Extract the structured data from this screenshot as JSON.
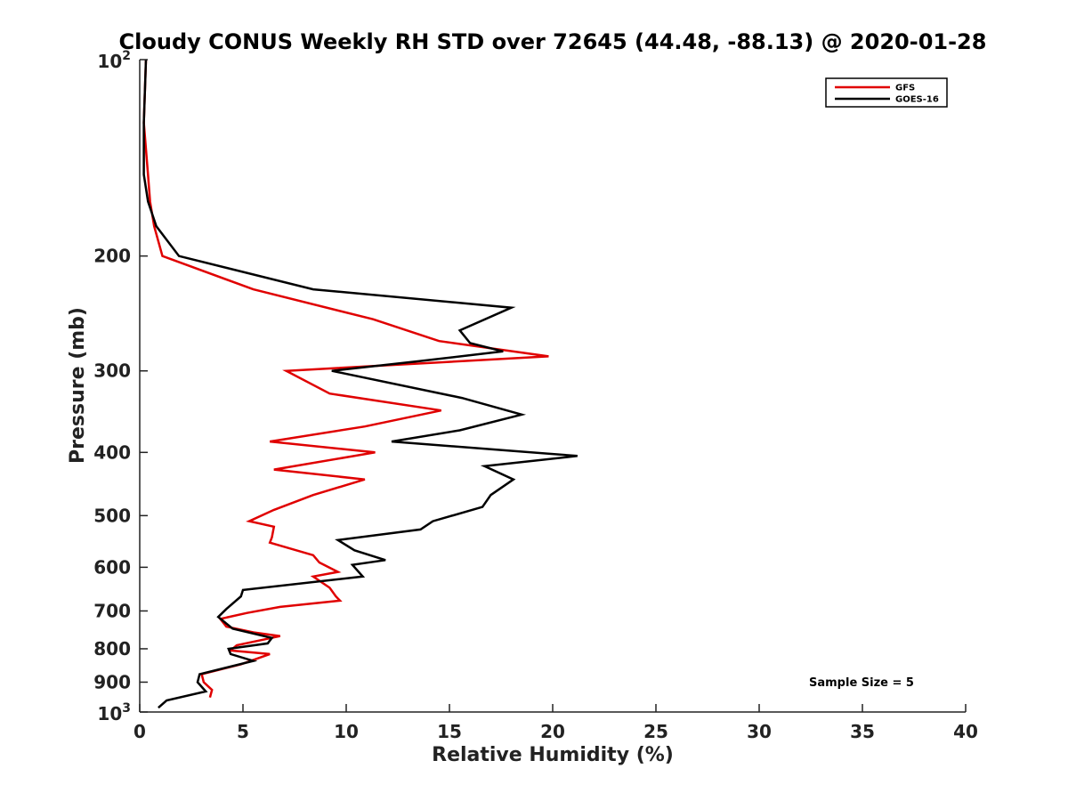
{
  "chart_data": {
    "type": "line",
    "title": "Cloudy CONUS Weekly RH STD over 72645 (44.48, -88.13) @ 2020-01-28",
    "xlabel": "Relative Humidity (%)",
    "ylabel": "Pressure (mb)",
    "xlim": [
      0,
      40
    ],
    "ylim": [
      100,
      1000
    ],
    "y_scale": "log",
    "y_reversed": true,
    "x_ticks": [
      "0",
      "5",
      "10",
      "15",
      "20",
      "25",
      "30",
      "35",
      "40"
    ],
    "y_ticks": [
      {
        "value": 100,
        "base": "10",
        "exp": "2"
      },
      {
        "value": 200,
        "label": "200"
      },
      {
        "value": 300,
        "label": "300"
      },
      {
        "value": 400,
        "label": "400"
      },
      {
        "value": 500,
        "label": "500"
      },
      {
        "value": 600,
        "label": "600"
      },
      {
        "value": 700,
        "label": "700"
      },
      {
        "value": 800,
        "label": "800"
      },
      {
        "value": 900,
        "label": "900"
      },
      {
        "value": 1000,
        "base": "10",
        "exp": "3"
      }
    ],
    "legend_position": "top-right",
    "grid": false,
    "annotation": "Sample Size = 5",
    "series": [
      {
        "name": "GFS",
        "color": "#e00000",
        "points": [
          [
            0.3,
            100
          ],
          [
            0.2,
            125
          ],
          [
            0.4,
            150
          ],
          [
            0.5,
            165
          ],
          [
            0.7,
            180
          ],
          [
            1.1,
            200
          ],
          [
            5.5,
            225
          ],
          [
            11.3,
            250
          ],
          [
            14.5,
            270
          ],
          [
            19.8,
            285
          ],
          [
            7.1,
            300
          ],
          [
            9.2,
            325
          ],
          [
            14.6,
            345
          ],
          [
            10.9,
            365
          ],
          [
            6.3,
            385
          ],
          [
            11.4,
            400
          ],
          [
            6.5,
            425
          ],
          [
            10.9,
            440
          ],
          [
            8.4,
            465
          ],
          [
            6.5,
            490
          ],
          [
            5.3,
            510
          ],
          [
            6.5,
            520
          ],
          [
            6.4,
            540
          ],
          [
            6.3,
            550
          ],
          [
            8.4,
            575
          ],
          [
            8.7,
            590
          ],
          [
            9.6,
            610
          ],
          [
            8.4,
            620
          ],
          [
            9.2,
            645
          ],
          [
            9.5,
            665
          ],
          [
            9.7,
            675
          ],
          [
            6.8,
            690
          ],
          [
            5.2,
            705
          ],
          [
            3.9,
            720
          ],
          [
            4.2,
            740
          ],
          [
            5.5,
            755
          ],
          [
            6.8,
            765
          ],
          [
            4.7,
            790
          ],
          [
            4.4,
            805
          ],
          [
            6.3,
            815
          ],
          [
            4.9,
            845
          ],
          [
            3.0,
            875
          ],
          [
            3.1,
            900
          ],
          [
            3.5,
            925
          ],
          [
            3.4,
            950
          ]
        ]
      },
      {
        "name": "GOES-16",
        "color": "#000000",
        "points": [
          [
            0.3,
            100
          ],
          [
            0.2,
            125
          ],
          [
            0.2,
            150
          ],
          [
            0.4,
            165
          ],
          [
            0.8,
            180
          ],
          [
            1.9,
            200
          ],
          [
            8.4,
            225
          ],
          [
            18.0,
            240
          ],
          [
            15.5,
            260
          ],
          [
            16.0,
            272
          ],
          [
            17.6,
            280
          ],
          [
            13.5,
            290
          ],
          [
            9.3,
            300
          ],
          [
            15.6,
            330
          ],
          [
            18.5,
            350
          ],
          [
            15.5,
            370
          ],
          [
            12.2,
            385
          ],
          [
            21.2,
            405
          ],
          [
            16.7,
            420
          ],
          [
            18.1,
            440
          ],
          [
            17.0,
            465
          ],
          [
            16.6,
            485
          ],
          [
            14.2,
            510
          ],
          [
            13.6,
            525
          ],
          [
            9.6,
            545
          ],
          [
            10.4,
            565
          ],
          [
            11.9,
            585
          ],
          [
            10.3,
            595
          ],
          [
            10.8,
            620
          ],
          [
            5.0,
            650
          ],
          [
            4.9,
            665
          ],
          [
            4.2,
            695
          ],
          [
            3.8,
            715
          ],
          [
            4.5,
            745
          ],
          [
            6.4,
            770
          ],
          [
            6.2,
            785
          ],
          [
            4.3,
            800
          ],
          [
            4.4,
            815
          ],
          [
            5.5,
            835
          ],
          [
            2.9,
            875
          ],
          [
            2.8,
            900
          ],
          [
            3.2,
            930
          ],
          [
            1.3,
            960
          ],
          [
            0.9,
            985
          ]
        ]
      }
    ]
  }
}
